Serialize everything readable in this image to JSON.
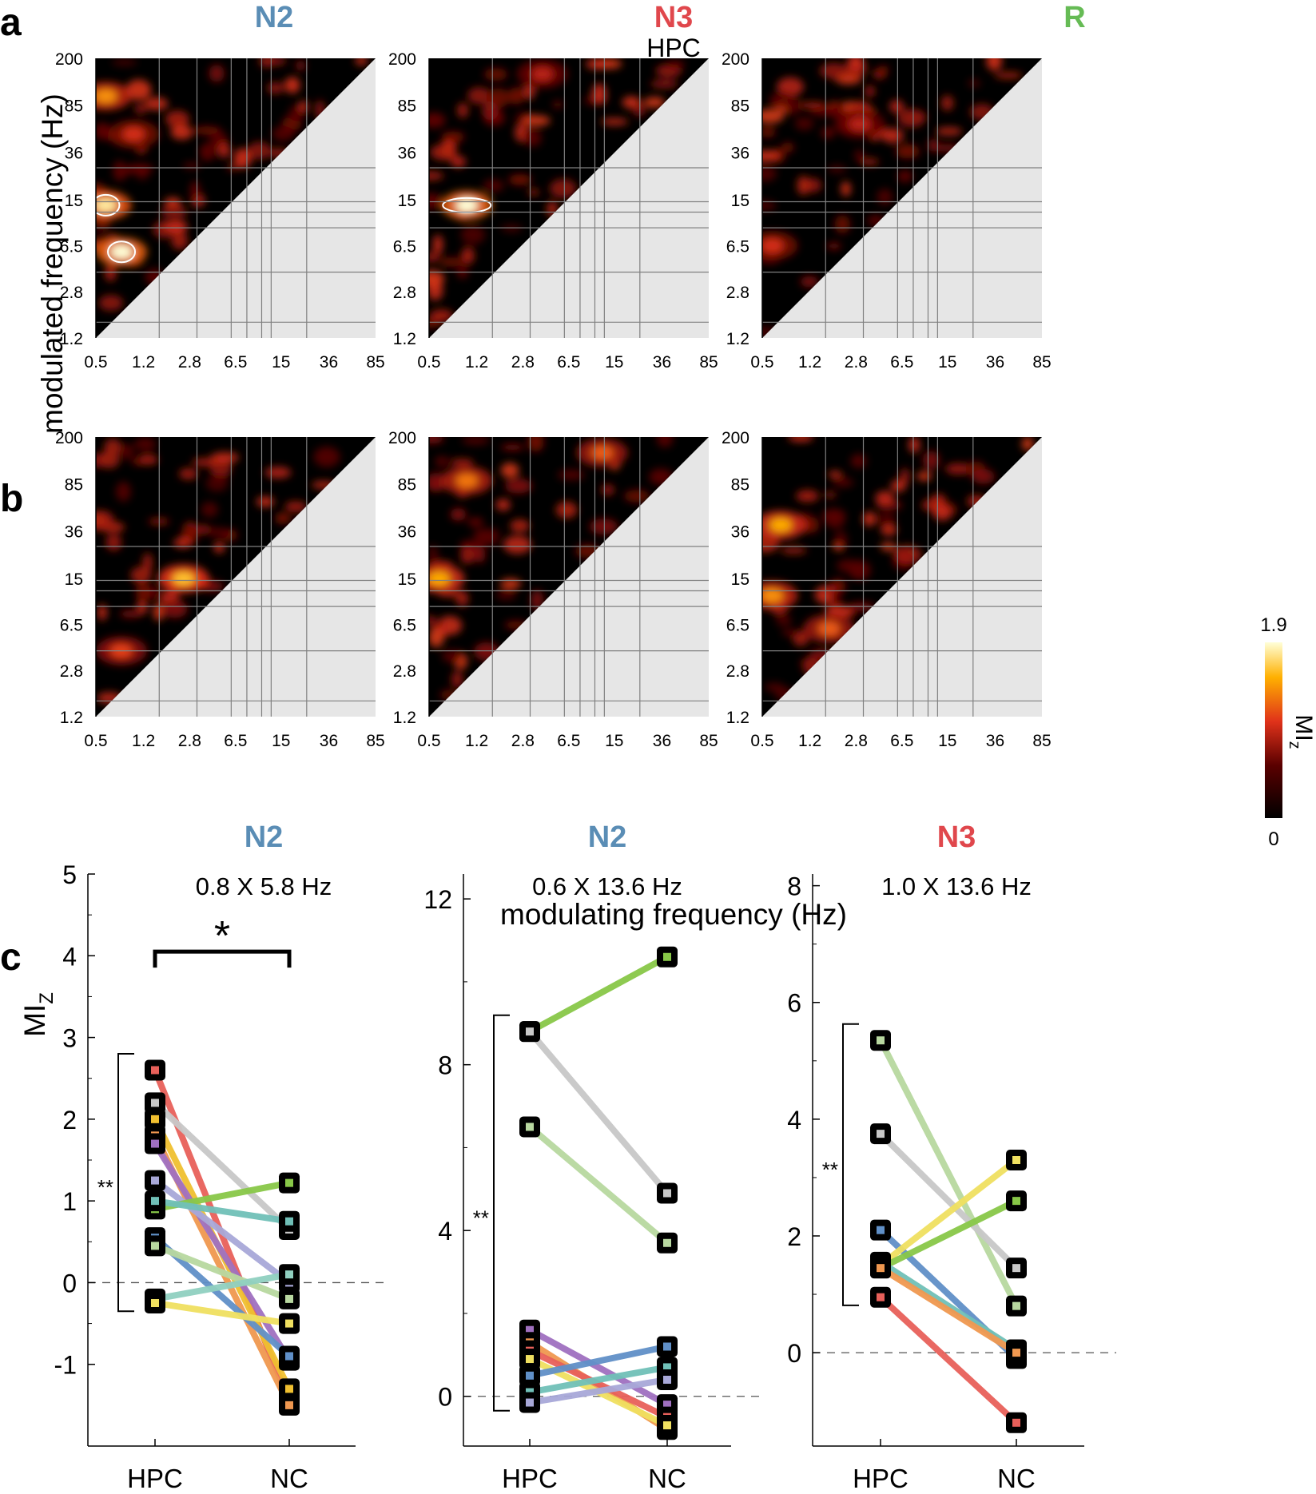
{
  "colors": {
    "N2": "#5a8db5",
    "N3": "#e0474c",
    "R": "#66bb55",
    "background_lower": "#e6e6e6",
    "heat_low": "#000000",
    "heat_mid": "#e0321a",
    "heat_high": "#ffff80"
  },
  "panel_labels": {
    "a": "a",
    "b": "b",
    "c": "c"
  },
  "row_titles": {
    "hpc": "HPC",
    "nc": "NC"
  },
  "stage_titles": [
    "N2",
    "N3",
    "R"
  ],
  "heatmap_axes": {
    "xticks": [
      "0.5",
      "1.2",
      "2.8",
      "6.5",
      "15",
      "36",
      "85"
    ],
    "yticks": [
      "200",
      "85",
      "36",
      "15",
      "6.5",
      "2.8",
      "1.2"
    ],
    "xlabel": "modulating frequency (Hz)",
    "ylabel": "modulated frequency (Hz)"
  },
  "colorbar": {
    "max_label": "1.9",
    "min_label": "0",
    "label": "MI",
    "label_sub": "z"
  },
  "chart_data": [
    {
      "type": "heatmap",
      "title": "N2 HPC",
      "xlabel": "modulating frequency (Hz)",
      "ylabel": "modulated frequency (Hz)",
      "xticks": [
        "0.5",
        "1.2",
        "2.8",
        "6.5",
        "15",
        "36",
        "85"
      ],
      "yticks": [
        "200",
        "85",
        "36",
        "15",
        "6.5",
        "2.8",
        "1.2"
      ],
      "zrange": [
        0,
        1.9
      ],
      "hotspots": [
        {
          "x": 0.6,
          "y": 13.6,
          "v": 1.8
        },
        {
          "x": 0.8,
          "y": 5.8,
          "v": 1.9
        },
        {
          "x": 0.6,
          "y": 100,
          "v": 1.4
        },
        {
          "x": 1.0,
          "y": 50,
          "v": 1.0
        }
      ]
    },
    {
      "type": "heatmap",
      "title": "N3 HPC",
      "xticks": [
        "0.5",
        "1.2",
        "2.8",
        "6.5",
        "15",
        "36",
        "85"
      ],
      "yticks": [
        "200",
        "85",
        "36",
        "15",
        "6.5",
        "2.8",
        "1.2"
      ],
      "zrange": [
        0,
        1.9
      ],
      "hotspots": [
        {
          "x": 1.0,
          "y": 13.6,
          "v": 1.9
        },
        {
          "x": 4.0,
          "y": 150,
          "v": 0.9
        }
      ]
    },
    {
      "type": "heatmap",
      "title": "R HPC",
      "xticks": [
        "0.5",
        "1.2",
        "2.8",
        "6.5",
        "15",
        "36",
        "85"
      ],
      "yticks": [
        "200",
        "85",
        "36",
        "15",
        "6.5",
        "2.8",
        "1.2"
      ],
      "zrange": [
        0,
        1.9
      ],
      "hotspots": [
        {
          "x": 0.6,
          "y": 6.5,
          "v": 1.0
        },
        {
          "x": 3.0,
          "y": 60,
          "v": 0.9
        }
      ]
    },
    {
      "type": "heatmap",
      "title": "N2 NC",
      "xticks": [
        "0.5",
        "1.2",
        "2.8",
        "6.5",
        "15",
        "36",
        "85"
      ],
      "yticks": [
        "200",
        "85",
        "36",
        "15",
        "6.5",
        "2.8",
        "1.2"
      ],
      "zrange": [
        0,
        1.9
      ],
      "hotspots": [
        {
          "x": 2.5,
          "y": 15,
          "v": 1.6
        },
        {
          "x": 0.8,
          "y": 4,
          "v": 1.1
        }
      ]
    },
    {
      "type": "heatmap",
      "title": "N3 NC",
      "xticks": [
        "0.5",
        "1.2",
        "2.8",
        "6.5",
        "15",
        "36",
        "85"
      ],
      "yticks": [
        "200",
        "85",
        "36",
        "15",
        "6.5",
        "2.8",
        "1.2"
      ],
      "zrange": [
        0,
        1.9
      ],
      "hotspots": [
        {
          "x": 0.6,
          "y": 15,
          "v": 1.5
        },
        {
          "x": 1.0,
          "y": 90,
          "v": 1.3
        },
        {
          "x": 12,
          "y": 150,
          "v": 1.2
        }
      ]
    },
    {
      "type": "heatmap",
      "title": "R NC",
      "xticks": [
        "0.5",
        "1.2",
        "2.8",
        "6.5",
        "15",
        "36",
        "85"
      ],
      "yticks": [
        "200",
        "85",
        "36",
        "15",
        "6.5",
        "2.8",
        "1.2"
      ],
      "zrange": [
        0,
        1.9
      ],
      "hotspots": [
        {
          "x": 0.7,
          "y": 40,
          "v": 1.5
        },
        {
          "x": 0.6,
          "y": 11,
          "v": 1.4
        },
        {
          "x": 1.7,
          "y": 6,
          "v": 1.2
        }
      ]
    },
    {
      "type": "scatter",
      "title": "N2",
      "subtitle": "0.8 X 5.8 Hz",
      "ylabel": "MI",
      "ylabel_sub": "Z",
      "categories": [
        "HPC",
        "NC"
      ],
      "ylim": [
        -2,
        5
      ],
      "yticks": [
        "5",
        "4",
        "3",
        "2",
        "1",
        "0",
        "-1"
      ],
      "significance_within": "**",
      "significance_between": "*",
      "pairs": [
        {
          "color": "#e8605a",
          "hpc": 2.6,
          "nc": -1.45
        },
        {
          "color": "#c8c8c8",
          "hpc": 2.2,
          "nc": 0.65
        },
        {
          "color": "#f0c030",
          "hpc": 2.0,
          "nc": -1.3
        },
        {
          "color": "#f09850",
          "hpc": 1.8,
          "nc": -1.5
        },
        {
          "color": "#a070c0",
          "hpc": 1.7,
          "nc": -0.95
        },
        {
          "color": "#a8a8d8",
          "hpc": 1.25,
          "nc": 0.0
        },
        {
          "color": "#88c848",
          "hpc": 0.9,
          "nc": 1.22
        },
        {
          "color": "#70c0b8",
          "hpc": 1.0,
          "nc": 0.75
        },
        {
          "color": "#6090c8",
          "hpc": 0.55,
          "nc": -0.9
        },
        {
          "color": "#b8d8a0",
          "hpc": 0.45,
          "nc": -0.2
        },
        {
          "color": "#90d0c0",
          "hpc": -0.2,
          "nc": 0.1
        },
        {
          "color": "#f0e060",
          "hpc": -0.25,
          "nc": -0.5
        }
      ]
    },
    {
      "type": "scatter",
      "title": "N2",
      "subtitle": "0.6 X 13.6 Hz",
      "categories": [
        "HPC",
        "NC"
      ],
      "ylim": [
        -1.2,
        12.6
      ],
      "yticks": [
        "12",
        "8",
        "4",
        "0"
      ],
      "significance_within": "**",
      "pairs": [
        {
          "color": "#88c848",
          "hpc": 8.8,
          "nc": 10.6
        },
        {
          "color": "#c8c8c8",
          "hpc": 8.8,
          "nc": 4.9
        },
        {
          "color": "#b8d8a0",
          "hpc": 6.5,
          "nc": 3.7
        },
        {
          "color": "#a070c0",
          "hpc": 1.6,
          "nc": -0.2
        },
        {
          "color": "#f09850",
          "hpc": 1.3,
          "nc": -0.8
        },
        {
          "color": "#e8605a",
          "hpc": 1.1,
          "nc": -0.5
        },
        {
          "color": "#f0e060",
          "hpc": 0.9,
          "nc": -0.7
        },
        {
          "color": "#6090c8",
          "hpc": 0.5,
          "nc": 1.2
        },
        {
          "color": "#70c0b8",
          "hpc": 0.1,
          "nc": 0.7
        },
        {
          "color": "#a8a8d8",
          "hpc": -0.15,
          "nc": 0.4
        }
      ]
    },
    {
      "type": "scatter",
      "title": "N3",
      "subtitle": "1.0 X 13.6 Hz",
      "categories": [
        "HPC",
        "NC"
      ],
      "ylim": [
        -1.6,
        8.2
      ],
      "yticks": [
        "8",
        "6",
        "4",
        "2",
        "0"
      ],
      "significance_within": "**",
      "pairs": [
        {
          "color": "#b8d8a0",
          "hpc": 5.35,
          "nc": 0.8
        },
        {
          "color": "#c8c8c8",
          "hpc": 3.75,
          "nc": 1.45
        },
        {
          "color": "#6090c8",
          "hpc": 2.1,
          "nc": -0.1
        },
        {
          "color": "#f0e060",
          "hpc": 1.5,
          "nc": 3.3
        },
        {
          "color": "#88c848",
          "hpc": 1.45,
          "nc": 2.6
        },
        {
          "color": "#70c0b8",
          "hpc": 1.55,
          "nc": 0.05
        },
        {
          "color": "#f09850",
          "hpc": 1.45,
          "nc": 0.0
        },
        {
          "color": "#e8605a",
          "hpc": 0.95,
          "nc": -1.2
        }
      ]
    }
  ]
}
